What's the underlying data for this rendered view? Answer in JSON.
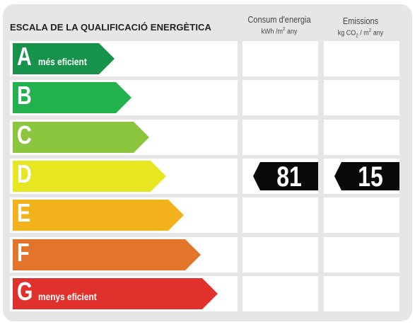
{
  "title": "ESCALA DE LA QUALIFICACIÓ ENERGÈTICA",
  "columns": {
    "energy": {
      "title": "Consum d'energia",
      "unit_main": "kWh /m",
      "unit_sup": "2",
      "unit_tail": " any"
    },
    "emissions": {
      "title": "Emissions",
      "unit_main": "kg CO",
      "unit_sub": "2",
      "unit_mid": " / m",
      "unit_sup": "2",
      "unit_tail": " any"
    }
  },
  "ratings": [
    {
      "letter": "A",
      "label": "més eficient",
      "color": "#16924a"
    },
    {
      "letter": "B",
      "label": "",
      "color": "#23b14d"
    },
    {
      "letter": "C",
      "label": "",
      "color": "#8cc63f"
    },
    {
      "letter": "D",
      "label": "",
      "color": "#e6e621"
    },
    {
      "letter": "E",
      "label": "",
      "color": "#f2b21b"
    },
    {
      "letter": "F",
      "label": "",
      "color": "#e2752b"
    },
    {
      "letter": "G",
      "label": "menys eficient",
      "color": "#e0312d"
    }
  ],
  "result": {
    "rating": "D",
    "energy_value": "81",
    "emissions_value": "15"
  }
}
